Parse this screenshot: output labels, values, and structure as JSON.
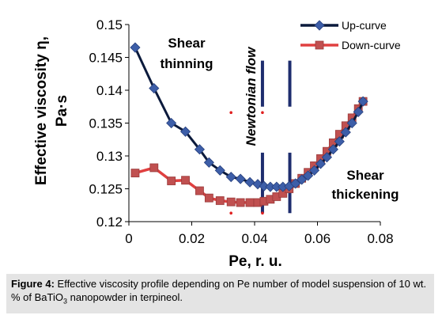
{
  "chart_data": {
    "type": "line",
    "xlabel": "Pe, r. u.",
    "ylabel_line1": "Effective viscosity η,",
    "ylabel_line2": "Pa·s",
    "xlim": [
      0,
      0.08
    ],
    "ylim": [
      0.12,
      0.15
    ],
    "xticks": [
      0,
      0.02,
      0.04,
      0.06,
      0.08
    ],
    "xtick_labels": [
      "0",
      "0.02",
      "0.04",
      "0.06",
      "0.08"
    ],
    "yticks": [
      0.12,
      0.125,
      0.13,
      0.135,
      0.14,
      0.145,
      0.15
    ],
    "ytick_labels": [
      "0.12",
      "0.125",
      "0.13",
      "0.135",
      "0.14",
      "0.145",
      "0.15"
    ],
    "grid": false,
    "legend_position": "top-right",
    "series": [
      {
        "name": "Up-curve",
        "color": "#0b1a3c",
        "marker": "diamond",
        "marker_color": "#3d5ea8",
        "x": [
          0.002,
          0.008,
          0.0135,
          0.018,
          0.0225,
          0.0255,
          0.029,
          0.0325,
          0.0355,
          0.0385,
          0.041,
          0.043,
          0.045,
          0.047,
          0.049,
          0.051,
          0.053,
          0.055,
          0.057,
          0.059,
          0.061,
          0.063,
          0.065,
          0.067,
          0.069,
          0.071,
          0.073,
          0.0745
        ],
        "y": [
          0.1465,
          0.1403,
          0.135,
          0.1337,
          0.131,
          0.129,
          0.1278,
          0.1268,
          0.1265,
          0.126,
          0.1257,
          0.1254,
          0.1253,
          0.1253,
          0.1253,
          0.1254,
          0.1258,
          0.1264,
          0.127,
          0.1278,
          0.1288,
          0.1298,
          0.131,
          0.1322,
          0.1336,
          0.135,
          0.1367,
          0.1383
        ]
      },
      {
        "name": "Down-curve",
        "color": "#e04040",
        "marker": "square",
        "marker_color": "#c05050",
        "x": [
          0.002,
          0.008,
          0.0135,
          0.018,
          0.0225,
          0.0255,
          0.029,
          0.0325,
          0.0355,
          0.0385,
          0.041,
          0.043,
          0.045,
          0.047,
          0.049,
          0.051,
          0.053,
          0.055,
          0.057,
          0.059,
          0.061,
          0.063,
          0.065,
          0.067,
          0.069,
          0.071,
          0.073,
          0.0745
        ],
        "y": [
          0.1274,
          0.1282,
          0.1262,
          0.1263,
          0.1247,
          0.1236,
          0.1232,
          0.123,
          0.1229,
          0.1229,
          0.1229,
          0.1231,
          0.1234,
          0.1238,
          0.1243,
          0.125,
          0.1258,
          0.1266,
          0.1275,
          0.1285,
          0.1296,
          0.1307,
          0.132,
          0.1333,
          0.1346,
          0.1358,
          0.1372,
          0.1383
        ]
      }
    ],
    "vertical_lines": [
      {
        "x": 0.0425,
        "y_from": 0.1213,
        "y_to": 0.1445,
        "gap_from": 0.1305,
        "gap_to": 0.1375
      },
      {
        "x": 0.0512,
        "y_from": 0.1213,
        "y_to": 0.1445,
        "gap_from": 0.1305,
        "gap_to": 0.1375
      }
    ],
    "red_dots": [
      {
        "x": 0.0325,
        "y": 0.1366
      },
      {
        "x": 0.0425,
        "y": 0.1366
      },
      {
        "x": 0.0325,
        "y": 0.1213
      },
      {
        "x": 0.0425,
        "y": 0.1213
      }
    ],
    "annotations": {
      "shear_thinning_line1": "Shear",
      "shear_thinning_line2": "thinning",
      "newtonian_flow": "Newtonian  flow",
      "shear_thickening_line1": "Shear",
      "shear_thickening_line2": "thickening"
    }
  },
  "caption": {
    "label": "Figure 4:",
    "text_before_formula": " Effective viscosity profile depending on Pe number of model suspension of 10 wt. % of BaTiO",
    "formula_subscript": "3",
    "text_after_formula": " nanopowder in terpineol."
  }
}
